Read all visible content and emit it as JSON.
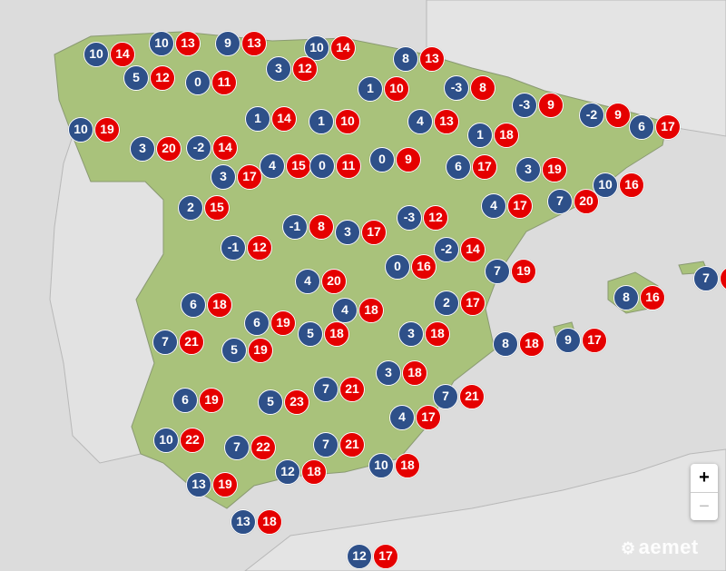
{
  "colors": {
    "min": "#2e5089",
    "max": "#e50000",
    "land": "#a9c27b",
    "sea": "#dcdcdc"
  },
  "zoom_control": {
    "in_label": "+",
    "out_label": "−"
  },
  "logo": {
    "text": "aemet"
  },
  "stations": [
    {
      "min": "10",
      "max": "14"
    },
    {
      "min": "10",
      "max": "13"
    },
    {
      "min": "9",
      "max": "13"
    },
    {
      "min": "10",
      "max": "14"
    },
    {
      "min": "8",
      "max": "13"
    },
    {
      "min": "5",
      "max": "12"
    },
    {
      "min": "0",
      "max": "11"
    },
    {
      "min": "3",
      "max": "12"
    },
    {
      "min": "1",
      "max": "10"
    },
    {
      "min": "-3",
      "max": "8"
    },
    {
      "min": "-3",
      "max": "9"
    },
    {
      "min": "-2",
      "max": "9"
    },
    {
      "min": "6",
      "max": "17"
    },
    {
      "min": "10",
      "max": "19"
    },
    {
      "min": "1",
      "max": "14"
    },
    {
      "min": "1",
      "max": "10"
    },
    {
      "min": "4",
      "max": "13"
    },
    {
      "min": "1",
      "max": "18"
    },
    {
      "min": "3",
      "max": "20"
    },
    {
      "min": "-2",
      "max": "14"
    },
    {
      "min": "3",
      "max": "17"
    },
    {
      "min": "4",
      "max": "15"
    },
    {
      "min": "0",
      "max": "11"
    },
    {
      "min": "0",
      "max": "9"
    },
    {
      "min": "6",
      "max": "17"
    },
    {
      "min": "3",
      "max": "19"
    },
    {
      "min": "7",
      "max": "20"
    },
    {
      "min": "10",
      "max": "16"
    },
    {
      "min": "4",
      "max": "17"
    },
    {
      "min": "2",
      "max": "15"
    },
    {
      "min": "-1",
      "max": "8"
    },
    {
      "min": "3",
      "max": "17"
    },
    {
      "min": "-3",
      "max": "12"
    },
    {
      "min": "-2",
      "max": "14"
    },
    {
      "min": "-1",
      "max": "12"
    },
    {
      "min": "0",
      "max": "16"
    },
    {
      "min": "7",
      "max": "19"
    },
    {
      "min": "7",
      "max": ""
    },
    {
      "min": "4",
      "max": "20"
    },
    {
      "min": "8",
      "max": "16"
    },
    {
      "min": "6",
      "max": "18"
    },
    {
      "min": "2",
      "max": "17"
    },
    {
      "min": "6",
      "max": "19"
    },
    {
      "min": "4",
      "max": "18"
    },
    {
      "min": "5",
      "max": "18"
    },
    {
      "min": "3",
      "max": "18"
    },
    {
      "min": "7",
      "max": "21"
    },
    {
      "min": "5",
      "max": "19"
    },
    {
      "min": "8",
      "max": "18"
    },
    {
      "min": "9",
      "max": "17"
    },
    {
      "min": "3",
      "max": "18"
    },
    {
      "min": "6",
      "max": "19"
    },
    {
      "min": "5",
      "max": "23"
    },
    {
      "min": "7",
      "max": "21"
    },
    {
      "min": "7",
      "max": "21"
    },
    {
      "min": "4",
      "max": "17"
    },
    {
      "min": "10",
      "max": "22"
    },
    {
      "min": "7",
      "max": "22"
    },
    {
      "min": "7",
      "max": "21"
    },
    {
      "min": "12",
      "max": "18"
    },
    {
      "min": "10",
      "max": "18"
    },
    {
      "min": "13",
      "max": "19"
    },
    {
      "min": "13",
      "max": "18"
    },
    {
      "min": "12",
      "max": "17"
    }
  ]
}
